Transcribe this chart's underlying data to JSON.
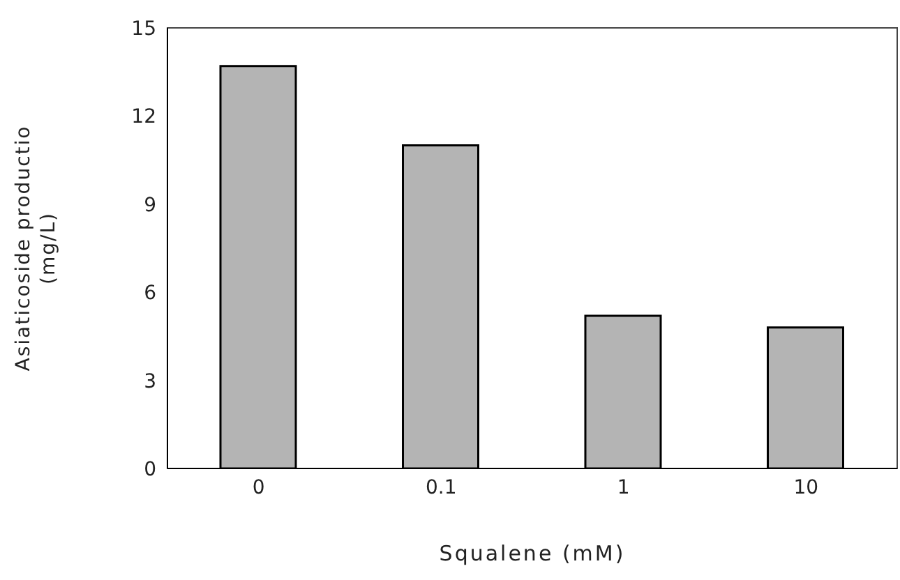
{
  "chart_data": {
    "type": "bar",
    "xlabel": "Squalene (mM)",
    "ylabel": "Asiaticoside productio\n(mg/L)",
    "categories": [
      "0",
      "0.1",
      "1",
      "10"
    ],
    "values": [
      13.7,
      11.0,
      5.2,
      4.8
    ],
    "color": "#b4b4b4",
    "ylim": [
      0,
      15
    ],
    "yticks": [
      0,
      3,
      6,
      9,
      12,
      15
    ],
    "grid": false,
    "legend": false
  }
}
